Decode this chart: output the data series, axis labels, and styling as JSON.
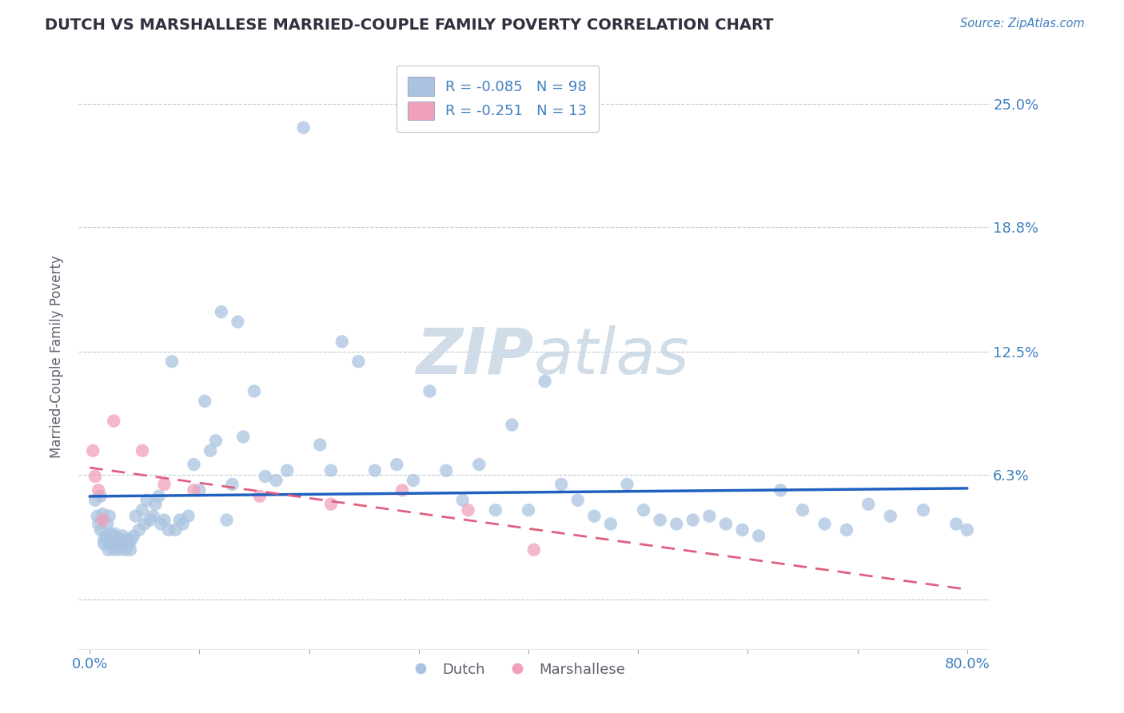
{
  "title": "DUTCH VS MARSHALLESE MARRIED-COUPLE FAMILY POVERTY CORRELATION CHART",
  "source": "Source: ZipAtlas.com",
  "ylabel": "Married-Couple Family Poverty",
  "xlim": [
    -0.01,
    0.82
  ],
  "ylim": [
    -0.025,
    0.27
  ],
  "ytick_vals": [
    0.0,
    0.063,
    0.125,
    0.188,
    0.25
  ],
  "ytick_labels": [
    "",
    "6.3%",
    "12.5%",
    "18.8%",
    "25.0%"
  ],
  "xtick_vals": [
    0.0,
    0.1,
    0.2,
    0.3,
    0.4,
    0.5,
    0.6,
    0.7,
    0.8
  ],
  "xtick_labels": [
    "0.0%",
    "",
    "",
    "",
    "",
    "",
    "",
    "",
    "80.0%"
  ],
  "dutch_R": -0.085,
  "dutch_N": 98,
  "marshallese_R": -0.251,
  "marshallese_N": 13,
  "dutch_color": "#aac4e0",
  "marshallese_color": "#f0a0b8",
  "dutch_line_color": "#2060c0",
  "marshallese_line_color": "#e06080",
  "background_color": "#ffffff",
  "grid_color": "#c8c8d0",
  "watermark_color": "#d0dce8",
  "title_color": "#303040",
  "axis_label_color": "#4080c0",
  "legend_text_color": "#4080c0",
  "ylabel_color": "#606070",
  "dutch_x": [
    0.005,
    0.007,
    0.008,
    0.01,
    0.01,
    0.012,
    0.013,
    0.013,
    0.015,
    0.016,
    0.017,
    0.018,
    0.019,
    0.02,
    0.021,
    0.022,
    0.023,
    0.025,
    0.026,
    0.027,
    0.028,
    0.03,
    0.032,
    0.033,
    0.034,
    0.036,
    0.037,
    0.038,
    0.04,
    0.042,
    0.045,
    0.048,
    0.05,
    0.052,
    0.055,
    0.058,
    0.06,
    0.063,
    0.065,
    0.068,
    0.072,
    0.075,
    0.078,
    0.082,
    0.085,
    0.09,
    0.095,
    0.1,
    0.105,
    0.11,
    0.115,
    0.12,
    0.125,
    0.13,
    0.135,
    0.14,
    0.15,
    0.16,
    0.17,
    0.18,
    0.195,
    0.21,
    0.22,
    0.23,
    0.245,
    0.26,
    0.28,
    0.295,
    0.31,
    0.325,
    0.34,
    0.355,
    0.37,
    0.385,
    0.4,
    0.415,
    0.43,
    0.445,
    0.46,
    0.475,
    0.49,
    0.505,
    0.52,
    0.535,
    0.55,
    0.565,
    0.58,
    0.595,
    0.61,
    0.63,
    0.65,
    0.67,
    0.69,
    0.71,
    0.73,
    0.76,
    0.79,
    0.8
  ],
  "dutch_y": [
    0.05,
    0.042,
    0.038,
    0.052,
    0.035,
    0.043,
    0.03,
    0.028,
    0.032,
    0.038,
    0.025,
    0.042,
    0.033,
    0.028,
    0.032,
    0.025,
    0.033,
    0.03,
    0.028,
    0.025,
    0.03,
    0.032,
    0.028,
    0.025,
    0.03,
    0.028,
    0.025,
    0.03,
    0.032,
    0.042,
    0.035,
    0.045,
    0.038,
    0.05,
    0.04,
    0.042,
    0.048,
    0.052,
    0.038,
    0.04,
    0.035,
    0.12,
    0.035,
    0.04,
    0.038,
    0.042,
    0.068,
    0.055,
    0.1,
    0.075,
    0.08,
    0.145,
    0.04,
    0.058,
    0.14,
    0.082,
    0.105,
    0.062,
    0.06,
    0.065,
    0.238,
    0.078,
    0.065,
    0.13,
    0.12,
    0.065,
    0.068,
    0.06,
    0.105,
    0.065,
    0.05,
    0.068,
    0.045,
    0.088,
    0.045,
    0.11,
    0.058,
    0.05,
    0.042,
    0.038,
    0.058,
    0.045,
    0.04,
    0.038,
    0.04,
    0.042,
    0.038,
    0.035,
    0.032,
    0.055,
    0.045,
    0.038,
    0.035,
    0.048,
    0.042,
    0.045,
    0.038,
    0.035
  ],
  "marshallese_x": [
    0.003,
    0.005,
    0.008,
    0.012,
    0.022,
    0.048,
    0.068,
    0.095,
    0.155,
    0.22,
    0.285,
    0.345,
    0.405
  ],
  "marshallese_y": [
    0.075,
    0.062,
    0.055,
    0.04,
    0.09,
    0.075,
    0.058,
    0.055,
    0.052,
    0.048,
    0.055,
    0.045,
    0.025
  ]
}
